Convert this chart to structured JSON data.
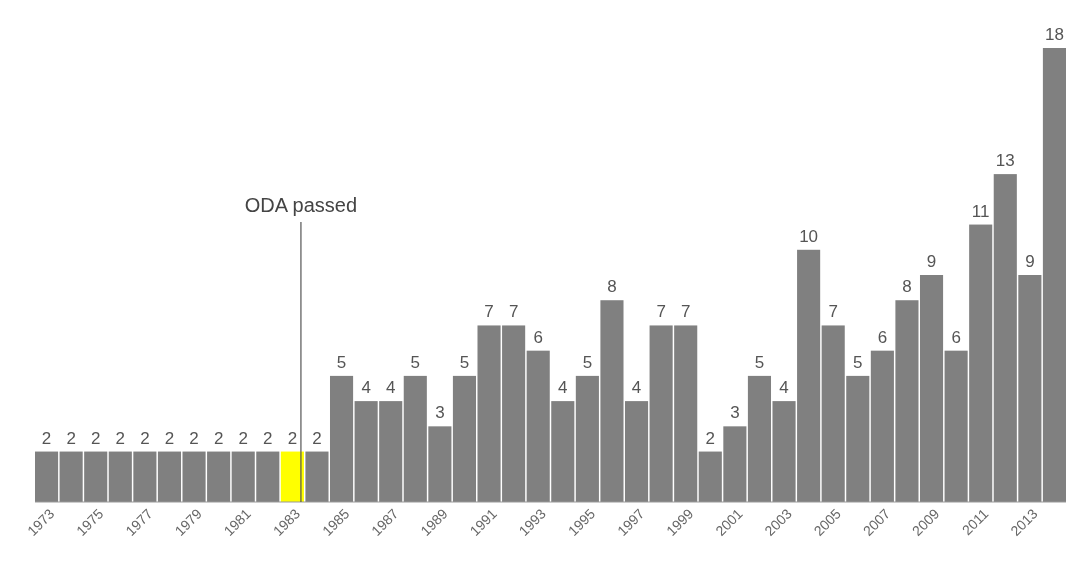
{
  "chart_data": {
    "type": "bar",
    "categories": [
      "1973",
      null,
      "1975",
      null,
      "1977",
      null,
      "1979",
      null,
      "1981",
      null,
      "1983",
      null,
      "1985",
      null,
      "1987",
      null,
      "1989",
      null,
      "1991",
      null,
      "1993",
      null,
      "1995",
      null,
      "1997",
      null,
      "1999",
      null,
      "2001",
      null,
      "2003",
      null,
      "2005",
      null,
      "2007",
      null,
      "2009",
      null,
      "2011",
      null,
      "2013",
      null
    ],
    "values": [
      2,
      2,
      2,
      2,
      2,
      2,
      2,
      2,
      2,
      2,
      2,
      2,
      5,
      4,
      4,
      5,
      3,
      5,
      7,
      7,
      6,
      4,
      5,
      8,
      4,
      7,
      7,
      2,
      3,
      5,
      4,
      10,
      7,
      5,
      6,
      8,
      9,
      6,
      11,
      13,
      9,
      18
    ],
    "colors": [
      "#808080",
      "#808080",
      "#808080",
      "#808080",
      "#808080",
      "#808080",
      "#808080",
      "#808080",
      "#808080",
      "#808080",
      "#ffff00",
      "#808080",
      "#808080",
      "#808080",
      "#808080",
      "#808080",
      "#808080",
      "#808080",
      "#808080",
      "#808080",
      "#808080",
      "#808080",
      "#808080",
      "#808080",
      "#808080",
      "#808080",
      "#808080",
      "#808080",
      "#808080",
      "#808080",
      "#808080",
      "#808080",
      "#808080",
      "#808080",
      "#808080",
      "#808080",
      "#808080",
      "#808080",
      "#808080",
      "#808080",
      "#808080",
      "#808080"
    ],
    "data_labels": true,
    "ref_lines": [
      {
        "axis": "x",
        "value": "1983",
        "label": "ODA passed",
        "color": "#555555"
      }
    ]
  }
}
